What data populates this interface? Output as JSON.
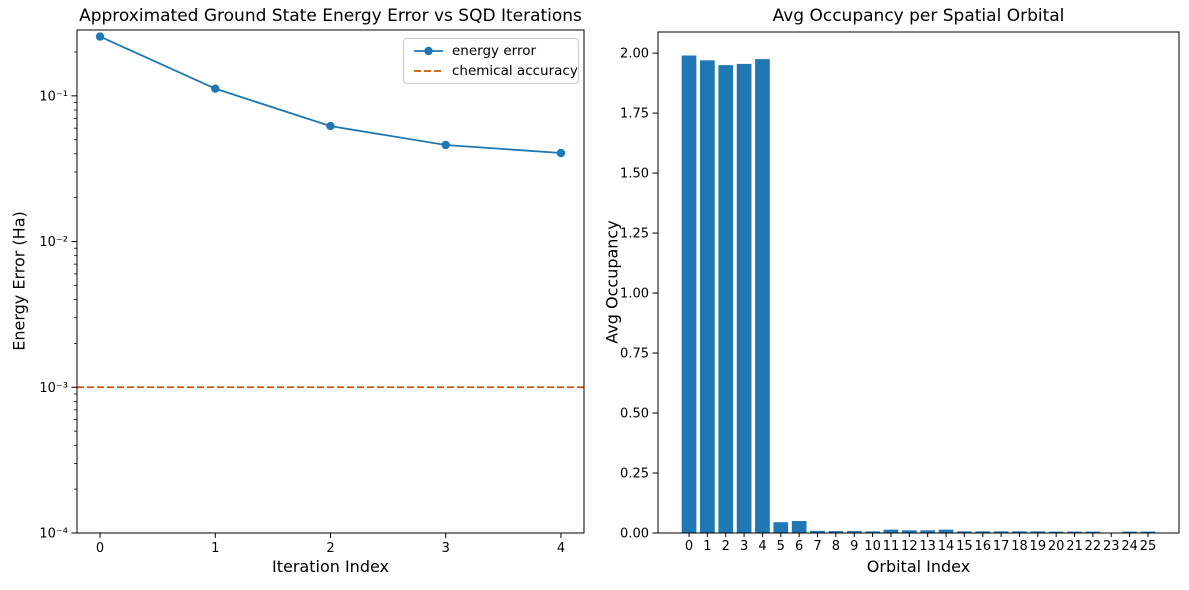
{
  "chart_data": [
    {
      "type": "line",
      "title": "Approximated Ground State Energy Error vs SQD Iterations",
      "xlabel": "Iteration Index",
      "ylabel": "Energy Error (Ha)",
      "yscale": "log",
      "grid": false,
      "legend_position": "upper right",
      "xlim": [
        -0.2,
        4.2
      ],
      "ylim": [
        0.0001,
        0.283
      ],
      "x": [
        0,
        1,
        2,
        3,
        4
      ],
      "x_tick_labels": [
        "0",
        "1",
        "2",
        "3",
        "4"
      ],
      "y_ticks": [
        {
          "value": 0.1,
          "label": "10⁻¹"
        },
        {
          "value": 0.01,
          "label": "10⁻²"
        },
        {
          "value": 0.001,
          "label": "10⁻³"
        },
        {
          "value": 0.0001,
          "label": "10⁻⁴"
        }
      ],
      "series": [
        {
          "name": "energy error",
          "color": "#1f77b4",
          "marker": "circle",
          "line_style": "solid",
          "values": [
            0.255,
            0.112,
            0.062,
            0.046,
            0.0405
          ]
        }
      ],
      "hline": {
        "name": "chemical accuracy",
        "value": 0.001,
        "color": "#cc5500",
        "line_style": "dashed"
      }
    },
    {
      "type": "bar",
      "title": "Avg Occupancy per Spatial Orbital",
      "xlabel": "Orbital Index",
      "ylabel": "Avg Occupancy",
      "grid": false,
      "bar_color": "#1f77b4",
      "bar_width": 0.8,
      "xlim": [
        -1.69,
        26.69
      ],
      "ylim": [
        0,
        2.088
      ],
      "categories": [
        "0",
        "1",
        "2",
        "3",
        "4",
        "5",
        "6",
        "7",
        "8",
        "9",
        "10",
        "11",
        "12",
        "13",
        "14",
        "15",
        "16",
        "17",
        "18",
        "19",
        "20",
        "21",
        "22",
        "23",
        "24",
        "25"
      ],
      "values": [
        1.99,
        1.97,
        1.95,
        1.955,
        1.975,
        0.045,
        0.05,
        0.009,
        0.008,
        0.008,
        0.007,
        0.014,
        0.011,
        0.011,
        0.014,
        0.007,
        0.007,
        0.007,
        0.007,
        0.007,
        0.006,
        0.006,
        0.006,
        0.002,
        0.006,
        0.006
      ],
      "y_tick_labels": [
        "0.00",
        "0.25",
        "0.50",
        "0.75",
        "1.00",
        "1.25",
        "1.50",
        "1.75",
        "2.00"
      ]
    }
  ]
}
